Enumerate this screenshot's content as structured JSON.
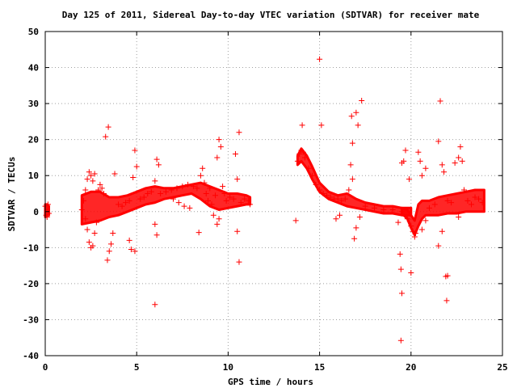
{
  "chart_data": {
    "type": "scatter",
    "title": "Day 125 of 2011, Sidereal Day-to-day VTEC variation (SDTVAR) for receiver mate",
    "xlabel": "GPS time / hours",
    "ylabel": "SDTVAR / TECUs",
    "xlim": [
      0,
      25
    ],
    "ylim": [
      -40,
      50
    ],
    "xticks": [
      "0",
      "5",
      "10",
      "15",
      "20",
      "25"
    ],
    "yticks": [
      "50",
      "40",
      "30",
      "20",
      "10",
      "0",
      "-10",
      "-20",
      "-30",
      "-40"
    ],
    "grid": true,
    "marker": "+",
    "color": "#ff0000",
    "series": [
      {
        "points": [
          [
            0.0,
            1.5
          ],
          [
            0.05,
            -1.0
          ],
          [
            0.1,
            0.5
          ],
          [
            0.15,
            2.0
          ],
          [
            0.2,
            -0.5
          ],
          [
            0.1,
            -1.5
          ],
          [
            2.0,
            0.5
          ],
          [
            2.1,
            3.0
          ],
          [
            2.2,
            6.0
          ],
          [
            2.3,
            9.0
          ],
          [
            2.4,
            11.0
          ],
          [
            2.5,
            10.0
          ],
          [
            2.6,
            8.5
          ],
          [
            2.7,
            10.5
          ],
          [
            2.2,
            -2.0
          ],
          [
            2.3,
            -5.0
          ],
          [
            2.4,
            -8.5
          ],
          [
            2.5,
            -10.0
          ],
          [
            2.6,
            -9.5
          ],
          [
            2.7,
            -6.0
          ],
          [
            2.8,
            -3.0
          ],
          [
            2.9,
            6.0
          ],
          [
            3.0,
            7.5
          ],
          [
            3.1,
            6.5
          ],
          [
            3.2,
            5.0
          ],
          [
            3.3,
            20.8
          ],
          [
            3.45,
            23.5
          ],
          [
            3.4,
            -13.5
          ],
          [
            3.5,
            -11.0
          ],
          [
            3.6,
            -9.0
          ],
          [
            3.7,
            -6.0
          ],
          [
            3.8,
            10.5
          ],
          [
            4.0,
            2.0
          ],
          [
            4.2,
            1.5
          ],
          [
            4.4,
            2.5
          ],
          [
            4.6,
            3.0
          ],
          [
            4.8,
            9.5
          ],
          [
            4.9,
            17.0
          ],
          [
            5.0,
            12.5
          ],
          [
            4.6,
            -8.0
          ],
          [
            4.7,
            -10.5
          ],
          [
            4.9,
            -11.0
          ],
          [
            5.2,
            3.5
          ],
          [
            5.4,
            4.0
          ],
          [
            5.6,
            5.0
          ],
          [
            5.8,
            5.5
          ],
          [
            6.0,
            -25.8
          ],
          [
            6.0,
            8.5
          ],
          [
            6.0,
            -3.5
          ],
          [
            6.1,
            14.5
          ],
          [
            6.2,
            13.0
          ],
          [
            6.1,
            -6.5
          ],
          [
            6.3,
            5.0
          ],
          [
            6.6,
            5.5
          ],
          [
            6.9,
            6.0
          ],
          [
            7.2,
            6.5
          ],
          [
            7.5,
            7.0
          ],
          [
            7.8,
            7.5
          ],
          [
            8.1,
            7.0
          ],
          [
            8.3,
            6.5
          ],
          [
            7.0,
            3.5
          ],
          [
            7.3,
            2.5
          ],
          [
            7.6,
            1.5
          ],
          [
            7.9,
            1.0
          ],
          [
            8.5,
            10.0
          ],
          [
            8.6,
            12.0
          ],
          [
            8.7,
            8.0
          ],
          [
            8.8,
            5.0
          ],
          [
            8.4,
            -5.8
          ],
          [
            8.9,
            3.0
          ],
          [
            9.0,
            6.5
          ],
          [
            9.1,
            2.0
          ],
          [
            9.2,
            -1.0
          ],
          [
            9.3,
            4.5
          ],
          [
            9.4,
            15.0
          ],
          [
            9.5,
            20.0
          ],
          [
            9.6,
            18.0
          ],
          [
            9.4,
            -3.5
          ],
          [
            9.5,
            -2.0
          ],
          [
            9.7,
            7.0
          ],
          [
            9.8,
            5.0
          ],
          [
            9.9,
            3.0
          ],
          [
            10.1,
            4.0
          ],
          [
            10.3,
            3.5
          ],
          [
            10.4,
            16.0
          ],
          [
            10.5,
            9.0
          ],
          [
            10.6,
            22.0
          ],
          [
            10.5,
            -5.5
          ],
          [
            10.6,
            -14.0
          ],
          [
            10.7,
            2.5
          ],
          [
            10.9,
            3.5
          ],
          [
            11.1,
            3.0
          ],
          [
            11.2,
            2.0
          ],
          [
            13.7,
            -2.5
          ],
          [
            13.8,
            14.0
          ],
          [
            13.9,
            16.0
          ],
          [
            14.0,
            17.0
          ],
          [
            14.05,
            24.0
          ],
          [
            14.1,
            16.5
          ],
          [
            14.2,
            15.0
          ],
          [
            14.4,
            12.0
          ],
          [
            14.6,
            10.0
          ],
          [
            14.8,
            7.5
          ],
          [
            15.0,
            6.0
          ],
          [
            15.1,
            24.0
          ],
          [
            15.0,
            42.3
          ],
          [
            15.2,
            5.0
          ],
          [
            15.4,
            4.5
          ],
          [
            15.6,
            4.0
          ],
          [
            15.8,
            3.5
          ],
          [
            16.0,
            3.5
          ],
          [
            16.2,
            3.0
          ],
          [
            16.4,
            3.5
          ],
          [
            15.9,
            -2.0
          ],
          [
            16.1,
            -1.0
          ],
          [
            16.6,
            6.0
          ],
          [
            16.7,
            13.0
          ],
          [
            16.75,
            26.5
          ],
          [
            16.8,
            19.0
          ],
          [
            17.0,
            27.5
          ],
          [
            17.1,
            24.0
          ],
          [
            17.3,
            30.8
          ],
          [
            16.9,
            -7.5
          ],
          [
            17.0,
            -4.5
          ],
          [
            17.2,
            -1.5
          ],
          [
            16.8,
            9.0
          ],
          [
            17.5,
            1.5
          ],
          [
            18.0,
            1.0
          ],
          [
            18.5,
            0.5
          ],
          [
            19.0,
            0.5
          ],
          [
            19.5,
            0.0
          ],
          [
            19.4,
            -11.8
          ],
          [
            19.45,
            -16.0
          ],
          [
            19.5,
            -22.7
          ],
          [
            19.45,
            -35.8
          ],
          [
            19.6,
            14.0
          ],
          [
            19.7,
            17.0
          ],
          [
            19.5,
            13.5
          ],
          [
            19.3,
            -3.0
          ],
          [
            19.8,
            -2.0
          ],
          [
            20.0,
            -4.0
          ],
          [
            20.1,
            -5.5
          ],
          [
            20.2,
            -7.0
          ],
          [
            20.25,
            -6.0
          ],
          [
            19.9,
            9.0
          ],
          [
            20.0,
            -17.0
          ],
          [
            20.4,
            16.5
          ],
          [
            20.5,
            14.0
          ],
          [
            20.6,
            10.0
          ],
          [
            20.8,
            12.0
          ],
          [
            20.6,
            -5.0
          ],
          [
            20.8,
            -2.5
          ],
          [
            21.0,
            1.0
          ],
          [
            21.3,
            2.0
          ],
          [
            21.5,
            19.5
          ],
          [
            21.6,
            30.7
          ],
          [
            21.7,
            13.0
          ],
          [
            21.5,
            -9.5
          ],
          [
            21.7,
            -5.5
          ],
          [
            21.9,
            -18.0
          ],
          [
            21.95,
            -24.7
          ],
          [
            22.0,
            -17.8
          ],
          [
            21.8,
            11.0
          ],
          [
            22.0,
            3.0
          ],
          [
            22.2,
            2.5
          ],
          [
            22.4,
            13.5
          ],
          [
            22.6,
            15.0
          ],
          [
            22.7,
            18.0
          ],
          [
            22.8,
            14.0
          ],
          [
            22.6,
            -1.5
          ],
          [
            22.9,
            6.0
          ],
          [
            23.1,
            3.0
          ],
          [
            23.3,
            2.0
          ],
          [
            23.5,
            4.0
          ],
          [
            23.7,
            3.5
          ],
          [
            23.9,
            2.5
          ]
        ]
      }
    ],
    "bands": [
      {
        "x": [
          2.0,
          2.5,
          3.0,
          3.5,
          4.0,
          4.5,
          5.0,
          5.5,
          6.0,
          6.5,
          7.0,
          7.5,
          8.0,
          8.5,
          9.0,
          9.5,
          10.0,
          10.5,
          11.0,
          11.2
        ],
        "lo": [
          -3.5,
          -3.0,
          -2.5,
          -1.5,
          -1.0,
          0.0,
          1.0,
          2.0,
          2.5,
          3.5,
          4.0,
          4.5,
          5.0,
          3.5,
          1.5,
          0.5,
          1.0,
          1.5,
          2.0,
          2.0
        ],
        "hi": [
          4.5,
          5.5,
          5.5,
          4.0,
          4.0,
          4.5,
          5.5,
          6.5,
          7.0,
          6.5,
          6.5,
          7.0,
          7.5,
          8.0,
          7.0,
          6.0,
          5.0,
          5.0,
          4.5,
          4.0
        ]
      },
      {
        "x": [
          13.8,
          14.0,
          14.3,
          14.6,
          15.0,
          15.5,
          16.0,
          16.5,
          17.0,
          17.5,
          18.0,
          18.5,
          19.0,
          19.5,
          20.0
        ],
        "lo": [
          13.0,
          14.0,
          12.0,
          9.0,
          5.5,
          3.5,
          2.5,
          1.5,
          1.0,
          0.5,
          0.0,
          -0.5,
          -0.5,
          -1.0,
          -1.0
        ],
        "hi": [
          15.5,
          17.5,
          15.5,
          12.5,
          8.0,
          5.5,
          4.5,
          5.0,
          3.5,
          2.5,
          2.0,
          1.5,
          1.5,
          1.0,
          1.0
        ]
      },
      {
        "x": [
          19.5,
          19.8,
          20.0,
          20.2,
          20.4,
          20.6,
          20.8,
          21.0,
          21.5,
          22.0,
          22.5,
          23.0,
          23.5,
          24.0
        ],
        "lo": [
          -0.5,
          -2.0,
          -4.5,
          -6.5,
          -4.0,
          -2.0,
          -1.0,
          -1.0,
          -1.0,
          -0.5,
          -0.5,
          0.0,
          0.0,
          0.0
        ],
        "hi": [
          1.0,
          0.5,
          -1.0,
          -2.5,
          2.0,
          3.0,
          3.0,
          3.0,
          4.0,
          4.5,
          5.0,
          5.5,
          6.0,
          6.0
        ]
      },
      {
        "x": [
          0.0,
          0.1,
          0.2
        ],
        "lo": [
          -1.5,
          -1.0,
          -1.0
        ],
        "hi": [
          2.0,
          2.0,
          1.5
        ]
      }
    ]
  }
}
